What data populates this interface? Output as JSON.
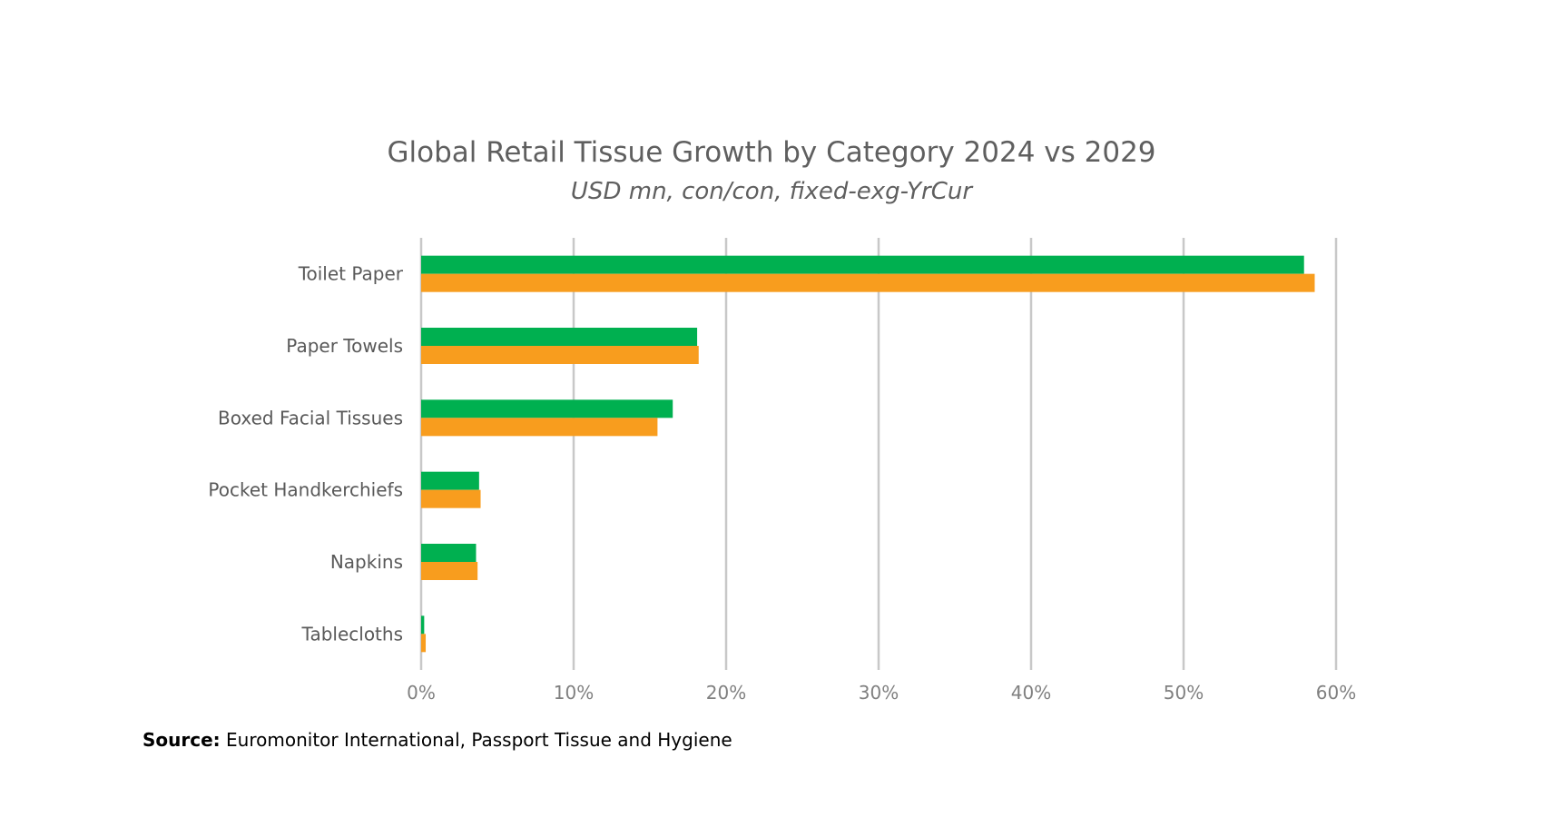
{
  "chart_data": {
    "type": "bar",
    "orientation": "horizontal",
    "title": "Global Retail Tissue Growth by Category 2024 vs 2029",
    "subtitle": "USD mn, con/con, fixed-exg-YrCur",
    "categories": [
      "Toilet Paper",
      "Paper Towels",
      "Boxed Facial Tissues",
      "Pocket Handkerchiefs",
      "Napkins",
      "Tablecloths"
    ],
    "series": [
      {
        "color": "#00b050",
        "values": [
          57.9,
          18.1,
          16.5,
          3.8,
          3.6,
          0.2
        ]
      },
      {
        "color": "#f89d1e",
        "values": [
          58.6,
          18.2,
          15.5,
          3.9,
          3.7,
          0.3
        ]
      }
    ],
    "xlim": [
      0,
      60
    ],
    "x_ticks": [
      "0%",
      "10%",
      "20%",
      "30%",
      "40%",
      "50%",
      "60%"
    ],
    "grid": true,
    "legend": "none"
  },
  "source": {
    "label": "Source:",
    "text": "Euromonitor International, Passport Tissue and Hygiene"
  },
  "colors": {
    "gridline": "#c8c8c8",
    "text": "#5f5f5f"
  }
}
